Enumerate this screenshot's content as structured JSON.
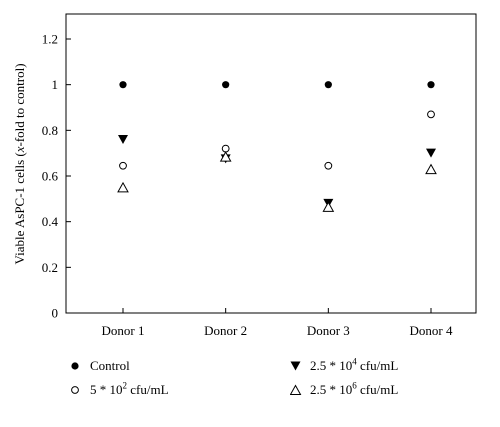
{
  "chart_data": {
    "type": "scatter",
    "categories": [
      "Donor 1",
      "Donor 2",
      "Donor 3",
      "Donor 4"
    ],
    "ylabel_parts": [
      "Viable AsPC-1 cells (",
      "x",
      "-fold to control)"
    ],
    "ylim": [
      0,
      1.2
    ],
    "yticks": [
      "0",
      "0.2",
      "0.4",
      "0.6",
      "0.8",
      "1",
      "1.2"
    ],
    "grid": false,
    "legend_position": "bottom",
    "series": [
      {
        "name_parts": [
          "Control",
          "",
          ""
        ],
        "marker": "filled-circle",
        "values": [
          1.0,
          1.0,
          1.0,
          1.0
        ]
      },
      {
        "name_parts": [
          "5 * 10",
          "2",
          " cfu/mL"
        ],
        "marker": "open-circle",
        "values": [
          0.645,
          0.72,
          0.645,
          0.87
        ]
      },
      {
        "name_parts": [
          "2.5 * 10",
          "4",
          " cfu/mL"
        ],
        "marker": "filled-triangle-down",
        "values": [
          0.76,
          0.675,
          0.48,
          0.7
        ]
      },
      {
        "name_parts": [
          "2.5 * 10",
          "6",
          " cfu/mL"
        ],
        "marker": "open-triangle-up",
        "values": [
          0.55,
          0.685,
          0.465,
          0.63
        ]
      }
    ]
  }
}
